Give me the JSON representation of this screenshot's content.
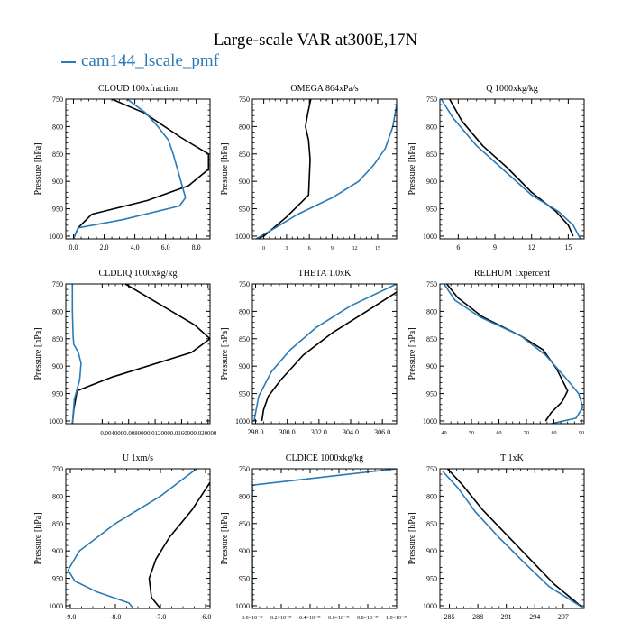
{
  "title": "Large-scale VAR at300E,17N",
  "legend": [
    {
      "name": "cam144_lscale_pmf",
      "color": "#2a7ab6"
    }
  ],
  "colors": {
    "series_black": "#000000",
    "series_blue": "#2a7ab6"
  },
  "chart_data": [
    {
      "type": "line",
      "title": "CLOUD 100xfraction",
      "ylabel": "Pressure [hPa]",
      "xlim": [
        -0.5,
        8.9
      ],
      "ylim": [
        750,
        1005
      ],
      "y_inverted": true,
      "xticks": [
        0.0,
        2.0,
        4.0,
        6.0,
        8.0
      ],
      "xtick_labels": [
        "0.0",
        "2.0",
        "4.0",
        "6.0",
        "8.0"
      ],
      "yticks": [
        750,
        800,
        850,
        900,
        950,
        1000
      ],
      "ytick_labels": [
        "750",
        "800",
        "850",
        "900",
        "950",
        "1000"
      ],
      "series": [
        {
          "color": "#000000",
          "x": [
            2.5,
            4.6,
            7.0,
            8.8,
            8.8,
            7.5,
            4.8,
            1.2,
            0.3,
            0.0
          ],
          "y": [
            750,
            775,
            820,
            850,
            878,
            908,
            935,
            960,
            985,
            1005
          ]
        },
        {
          "color": "#2a7ab6",
          "x": [
            3.5,
            4.7,
            5.5,
            6.2,
            6.5,
            6.8,
            7.3,
            6.9,
            3.2,
            0.3,
            0.0
          ],
          "y": [
            750,
            775,
            800,
            825,
            850,
            880,
            930,
            945,
            970,
            985,
            1005
          ]
        }
      ]
    },
    {
      "type": "line",
      "title": "OMEGA 864xPa/s",
      "ylabel": "Pressure [hPa]",
      "xlim": [
        -1.5,
        17.5
      ],
      "ylim": [
        750,
        1005
      ],
      "y_inverted": true,
      "xticks": [
        0,
        3,
        6,
        9,
        12,
        15
      ],
      "xtick_labels": [
        "0",
        "3",
        "6",
        "9",
        "12",
        "15"
      ],
      "yticks": [
        750,
        800,
        850,
        900,
        950,
        1000
      ],
      "ytick_labels": [
        "750",
        "800",
        "850",
        "900",
        "950",
        "1000"
      ],
      "series": [
        {
          "color": "#000000",
          "x": [
            6.2,
            5.8,
            5.5,
            5.9,
            6.1,
            5.9,
            3.0,
            0.0,
            -1.0
          ],
          "y": [
            750,
            775,
            800,
            825,
            860,
            925,
            965,
            1000,
            1005
          ]
        },
        {
          "color": "#2a7ab6",
          "x": [
            17.5,
            17.0,
            16.0,
            14.5,
            12.5,
            9.0,
            4.5,
            1.5,
            -1.0
          ],
          "y": [
            760,
            800,
            840,
            870,
            900,
            930,
            960,
            985,
            1005
          ]
        }
      ]
    },
    {
      "type": "line",
      "title": "Q 1000xkg/kg",
      "ylabel": "Pressure [hPa]",
      "xlim": [
        4.5,
        16.3
      ],
      "ylim": [
        750,
        1005
      ],
      "y_inverted": true,
      "xticks": [
        6,
        9,
        12,
        15
      ],
      "xtick_labels": [
        "6",
        "9",
        "12",
        "15"
      ],
      "yticks": [
        750,
        800,
        850,
        900,
        950,
        1000
      ],
      "ytick_labels": [
        "750",
        "800",
        "850",
        "900",
        "950",
        "1000"
      ],
      "series": [
        {
          "color": "#000000",
          "x": [
            5.3,
            6.3,
            8.0,
            10.0,
            12.0,
            14.0,
            15.0,
            15.4
          ],
          "y": [
            750,
            790,
            835,
            875,
            920,
            955,
            980,
            1000
          ]
        },
        {
          "color": "#2a7ab6",
          "x": [
            4.6,
            5.6,
            7.5,
            9.5,
            12.0,
            14.2,
            15.4,
            16.0
          ],
          "y": [
            750,
            785,
            835,
            875,
            925,
            955,
            980,
            1005
          ]
        }
      ]
    },
    {
      "type": "line",
      "title": "CLDLIQ 1000xkg/kg",
      "ylabel": "Pressure [hPa]",
      "xlim": [
        -0.0015,
        0.0203
      ],
      "ylim": [
        750,
        1005
      ],
      "y_inverted": true,
      "xticks": [
        0.004,
        0.008,
        0.012,
        0.016,
        0.02
      ],
      "xtick_labels": [
        "0.004",
        "0.008",
        "0.012",
        "0.016",
        "0.020"
      ],
      "xtick_text": "0.0040000.0080000.0120000.0160000.020000",
      "yticks": [
        750,
        800,
        850,
        900,
        950,
        1000
      ],
      "ytick_labels": [
        "750",
        "800",
        "850",
        "900",
        "950",
        "1000"
      ],
      "series": [
        {
          "color": "#000000",
          "x": [
            0.0075,
            0.011,
            0.018,
            0.0203,
            0.0175,
            0.0055,
            0.0002,
            -0.0003,
            -0.0005
          ],
          "y": [
            750,
            775,
            825,
            850,
            875,
            920,
            945,
            980,
            1005
          ]
        },
        {
          "color": "#2a7ab6",
          "x": [
            -0.0005,
            -0.0005,
            -0.0004,
            -0.0003,
            0.0004,
            0.0008,
            0.0006,
            -0.0002,
            -0.0005
          ],
          "y": [
            750,
            800,
            845,
            860,
            875,
            895,
            925,
            960,
            1005
          ]
        }
      ]
    },
    {
      "type": "line",
      "title": "THETA 1.0xK",
      "ylabel": "Pressure [hPa]",
      "xlim": [
        297.8,
        306.9
      ],
      "ylim": [
        750,
        1005
      ],
      "y_inverted": true,
      "xticks": [
        298.0,
        300.0,
        302.0,
        304.0,
        306.0
      ],
      "xtick_labels": [
        "298.0",
        "300.0",
        "302.0",
        "304.0",
        "306.0"
      ],
      "yticks": [
        750,
        800,
        850,
        900,
        950,
        1000
      ],
      "ytick_labels": [
        "750",
        "800",
        "850",
        "900",
        "950",
        "1000"
      ],
      "series": [
        {
          "color": "#000000",
          "x": [
            306.9,
            305.0,
            302.8,
            301.0,
            299.6,
            298.8,
            298.5,
            298.4
          ],
          "y": [
            765,
            800,
            840,
            880,
            925,
            955,
            980,
            1000
          ]
        },
        {
          "color": "#2a7ab6",
          "x": [
            306.9,
            304.0,
            301.8,
            300.2,
            299.0,
            298.2,
            297.9
          ],
          "y": [
            750,
            790,
            830,
            870,
            910,
            955,
            1000
          ]
        }
      ]
    },
    {
      "type": "line",
      "title": "RELHUM 1xpercent",
      "ylabel": "Pressure [hPa]",
      "xlim": [
        38.5,
        91.0
      ],
      "ylim": [
        750,
        1005
      ],
      "y_inverted": true,
      "xticks": [
        40,
        50,
        60,
        70,
        80,
        90
      ],
      "xtick_labels": [
        "40",
        "50",
        "60",
        "70",
        "80",
        "90"
      ],
      "yticks": [
        750,
        800,
        850,
        900,
        950,
        1000
      ],
      "ytick_labels": [
        "750",
        "800",
        "850",
        "900",
        "950",
        "1000"
      ],
      "series": [
        {
          "color": "#000000",
          "x": [
            41.0,
            45.0,
            54.0,
            68.0,
            76.0,
            81.0,
            85.0,
            83.0,
            79.0,
            77.0
          ],
          "y": [
            750,
            775,
            810,
            845,
            870,
            905,
            945,
            965,
            985,
            1000
          ]
        },
        {
          "color": "#2a7ab6",
          "x": [
            40.0,
            44.0,
            53.0,
            68.0,
            77.0,
            84.0,
            89.0,
            90.5,
            88.0,
            79.0
          ],
          "y": [
            750,
            780,
            810,
            845,
            880,
            920,
            950,
            975,
            995,
            1005
          ]
        }
      ]
    },
    {
      "type": "line",
      "title": "U 1xm/s",
      "ylabel": "Pressure [hPa]",
      "xlim": [
        -9.1,
        -5.9
      ],
      "ylim": [
        750,
        1005
      ],
      "y_inverted": true,
      "xticks": [
        -9.0,
        -8.0,
        -7.0,
        -6.0
      ],
      "xtick_labels": [
        "-9.0",
        "-8.0",
        "-7.0",
        "-6.0"
      ],
      "yticks": [
        750,
        800,
        850,
        900,
        950,
        1000
      ],
      "ytick_labels": [
        "750",
        "800",
        "850",
        "900",
        "950",
        "1000"
      ],
      "series": [
        {
          "color": "#000000",
          "x": [
            -5.9,
            -6.3,
            -6.8,
            -7.1,
            -7.25,
            -7.2,
            -7.0
          ],
          "y": [
            775,
            825,
            875,
            915,
            950,
            985,
            1005
          ]
        },
        {
          "color": "#2a7ab6",
          "x": [
            -6.2,
            -7.0,
            -8.0,
            -8.8,
            -9.05,
            -8.9,
            -8.4,
            -7.7,
            -7.6
          ],
          "y": [
            750,
            800,
            850,
            900,
            935,
            955,
            975,
            995,
            1005
          ]
        }
      ]
    },
    {
      "type": "line",
      "title": "CLDICE 1000xkg/kg",
      "ylabel": "Pressure [hPa]",
      "xlim": [
        0.0,
        1e-31
      ],
      "ylim": [
        750,
        1005
      ],
      "y_inverted": true,
      "xticks": [
        0.0,
        2e-32,
        4e-32,
        6e-32,
        8e-32,
        1e-31
      ],
      "xtick_labels": [
        "0.0×10⁻³¹",
        "0.2×10⁻³¹",
        "0.4×10⁻³¹",
        "0.6×10⁻³¹",
        "0.8×10⁻³¹",
        "1.0×10⁻³¹"
      ],
      "yticks": [
        750,
        800,
        850,
        900,
        950,
        1000
      ],
      "ytick_labels": [
        "750",
        "800",
        "850",
        "900",
        "950",
        "1000"
      ],
      "series": [
        {
          "color": "#2a7ab6",
          "x": [
            1e-31,
            0.0,
            0.0
          ],
          "y": [
            750,
            780,
            1005
          ]
        }
      ]
    },
    {
      "type": "line",
      "title": "T 1xK",
      "ylabel": "Pressure [hPa]",
      "xlim": [
        284.0,
        299.2
      ],
      "ylim": [
        750,
        1005
      ],
      "y_inverted": true,
      "xticks": [
        285,
        288,
        291,
        294,
        297
      ],
      "xtick_labels": [
        "285",
        "288",
        "291",
        "294",
        "297"
      ],
      "yticks": [
        750,
        800,
        850,
        900,
        950,
        1000
      ],
      "ytick_labels": [
        "750",
        "800",
        "850",
        "900",
        "950",
        "1000"
      ],
      "series": [
        {
          "color": "#000000",
          "x": [
            284.8,
            286.4,
            288.5,
            291.0,
            293.5,
            296.0,
            298.8
          ],
          "y": [
            750,
            780,
            825,
            870,
            915,
            960,
            1000
          ]
        },
        {
          "color": "#2a7ab6",
          "x": [
            284.3,
            285.9,
            287.8,
            290.2,
            292.8,
            295.5,
            299.2
          ],
          "y": [
            755,
            785,
            830,
            875,
            920,
            965,
            1005
          ]
        }
      ]
    }
  ]
}
